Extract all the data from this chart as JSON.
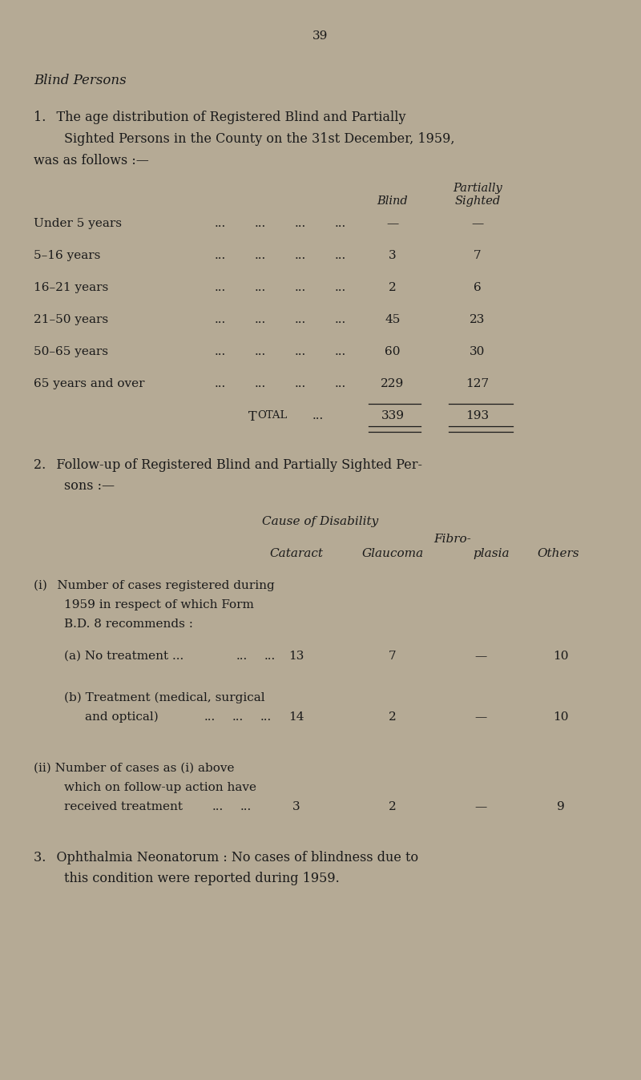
{
  "bg_color": "#b5aa95",
  "text_color": "#1a1a1a",
  "page_number": "39",
  "section_title": "Blind Persons",
  "a_values": [
    "13",
    "7",
    "—",
    "10"
  ],
  "b_values": [
    "14",
    "2",
    "—",
    "10"
  ],
  "ii_values": [
    "3",
    "2",
    "—",
    "9"
  ],
  "total_blind": "339",
  "total_sighted": "193",
  "row_data": [
    [
      "Under 5 years",
      "—",
      "—"
    ],
    [
      "  5–16 years",
      "3",
      "7"
    ],
    [
      "16–21 years",
      "2",
      "6"
    ],
    [
      "21–50 years",
      "45",
      "23"
    ],
    [
      "50–65 years",
      "60",
      "30"
    ],
    [
      "65 years and over",
      "229",
      "127"
    ]
  ]
}
